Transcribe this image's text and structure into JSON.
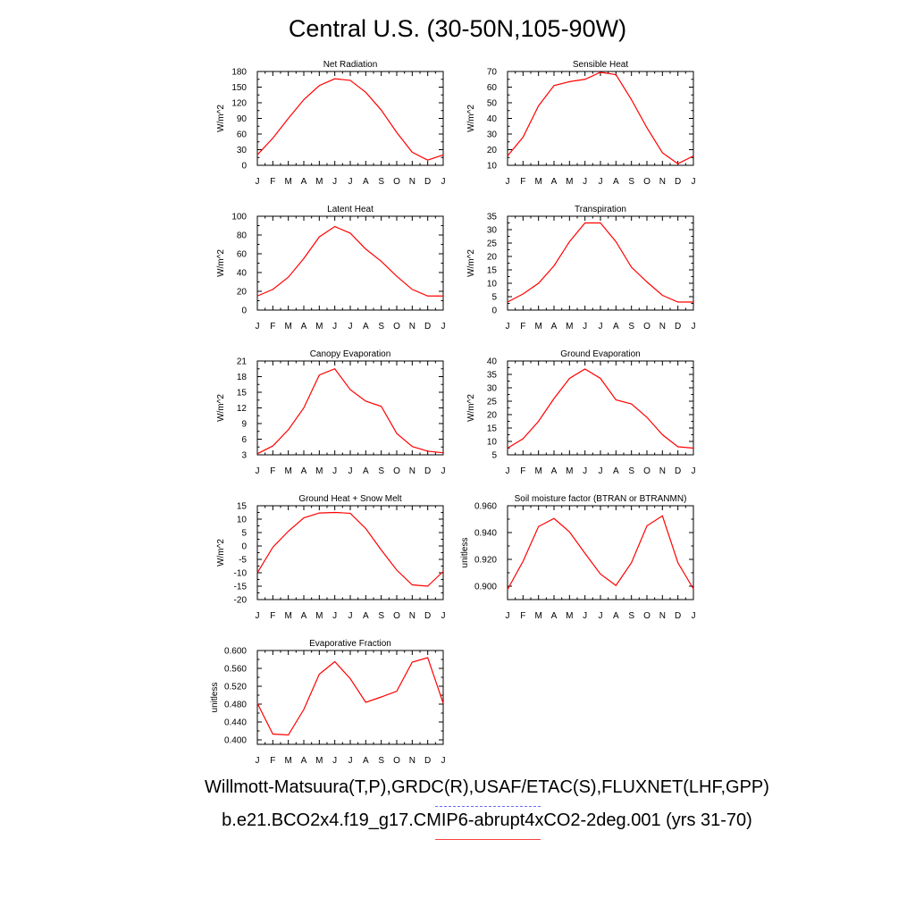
{
  "page": {
    "title": "Central U.S. (30-50N,105-90W)",
    "caption_obs": "Willmott-Matsuura(T,P),GRDC(R),USAF/ETAC(S),FLUXNET(LHF,GPP)",
    "caption_model": "b.e21.BCO2x4.f19_g17.CMIP6-abrupt4xCO2-2deg.001 (yrs 31-70)",
    "legend_obs_color": "#6a6af0",
    "legend_model_color": "#ff0000"
  },
  "chart_data": [
    {
      "type": "line",
      "title": "Net Radiation",
      "ylabel": "W/m^2",
      "x": [
        "J",
        "F",
        "M",
        "A",
        "M",
        "J",
        "J",
        "A",
        "S",
        "O",
        "N",
        "D",
        "J"
      ],
      "ylim": [
        0,
        180
      ],
      "yticks": [
        "0",
        "30",
        "60",
        "90",
        "120",
        "150",
        "180"
      ],
      "series": [
        {
          "color": "#ff0000",
          "values": [
            20,
            52,
            90,
            126,
            153,
            166,
            163,
            140,
            106,
            63,
            25,
            10,
            20
          ]
        }
      ]
    },
    {
      "type": "line",
      "title": "Sensible Heat",
      "ylabel": "W/m^2",
      "x": [
        "J",
        "F",
        "M",
        "A",
        "M",
        "J",
        "J",
        "A",
        "S",
        "O",
        "N",
        "D",
        "J"
      ],
      "ylim": [
        10,
        70
      ],
      "yticks": [
        "10",
        "20",
        "30",
        "40",
        "50",
        "60",
        "70"
      ],
      "series": [
        {
          "color": "#ff0000",
          "values": [
            16,
            28,
            48,
            61,
            63.5,
            65,
            69.5,
            68,
            52,
            34,
            18,
            11,
            16
          ]
        }
      ]
    },
    {
      "type": "line",
      "title": "Latent Heat",
      "ylabel": "W/m^2",
      "x": [
        "J",
        "F",
        "M",
        "A",
        "M",
        "J",
        "J",
        "A",
        "S",
        "O",
        "N",
        "D",
        "J"
      ],
      "ylim": [
        0,
        100
      ],
      "yticks": [
        "0",
        "20",
        "40",
        "60",
        "80",
        "100"
      ],
      "series": [
        {
          "color": "#ff0000",
          "values": [
            15,
            22,
            35,
            55,
            78,
            89,
            82,
            65,
            52,
            36,
            22,
            15,
            15
          ]
        }
      ]
    },
    {
      "type": "line",
      "title": "Transpiration",
      "ylabel": "W/m^2",
      "x": [
        "J",
        "F",
        "M",
        "A",
        "M",
        "J",
        "J",
        "A",
        "S",
        "O",
        "N",
        "D",
        "J"
      ],
      "ylim": [
        0,
        35
      ],
      "yticks": [
        "0",
        "5",
        "10",
        "15",
        "20",
        "25",
        "30",
        "35"
      ],
      "series": [
        {
          "color": "#ff0000",
          "values": [
            3,
            6,
            10,
            16.5,
            25.5,
            32.5,
            32.5,
            25.5,
            16,
            10.5,
            5.5,
            3,
            3
          ]
        }
      ]
    },
    {
      "type": "line",
      "title": "Canopy Evaporation",
      "ylabel": "W/m^2",
      "x": [
        "J",
        "F",
        "M",
        "A",
        "M",
        "J",
        "J",
        "A",
        "S",
        "O",
        "N",
        "D",
        "J"
      ],
      "ylim": [
        3,
        21
      ],
      "yticks": [
        "3",
        "6",
        "9",
        "12",
        "15",
        "18",
        "21"
      ],
      "series": [
        {
          "color": "#ff0000",
          "values": [
            3.2,
            4.7,
            7.8,
            12,
            18.3,
            19.5,
            15.5,
            13.3,
            12.3,
            7.1,
            4.6,
            3.7,
            3.4
          ]
        }
      ]
    },
    {
      "type": "line",
      "title": "Ground Evaporation",
      "ylabel": "W/m^2",
      "x": [
        "J",
        "F",
        "M",
        "A",
        "M",
        "J",
        "J",
        "A",
        "S",
        "O",
        "N",
        "D",
        "J"
      ],
      "ylim": [
        5,
        40
      ],
      "yticks": [
        "5",
        "10",
        "15",
        "20",
        "25",
        "30",
        "35",
        "40"
      ],
      "series": [
        {
          "color": "#ff0000",
          "values": [
            7.5,
            11,
            17.5,
            26,
            33.5,
            37,
            33.5,
            25.5,
            24,
            19,
            12.5,
            8,
            7.5
          ]
        }
      ]
    },
    {
      "type": "line",
      "title": "Ground Heat + Snow Melt",
      "ylabel": "W/m^2",
      "x": [
        "J",
        "F",
        "M",
        "A",
        "M",
        "J",
        "J",
        "A",
        "S",
        "O",
        "N",
        "D",
        "J"
      ],
      "ylim": [
        -20,
        15
      ],
      "yticks": [
        "-20",
        "-15",
        "-10",
        "-5",
        "0",
        "5",
        "10",
        "15"
      ],
      "series": [
        {
          "color": "#ff0000",
          "values": [
            -10,
            -0.5,
            5.5,
            10.5,
            12.3,
            12.5,
            12.2,
            6.5,
            -1.5,
            -9,
            -14.5,
            -15,
            -9.5
          ]
        }
      ]
    },
    {
      "type": "line",
      "title": "Soil moisture factor (BTRAN or BTRANMN)",
      "ylabel": "unitless",
      "x": [
        "J",
        "F",
        "M",
        "A",
        "M",
        "J",
        "J",
        "A",
        "S",
        "O",
        "N",
        "D",
        "J"
      ],
      "ylim": [
        0.89,
        0.96
      ],
      "yticks": [
        "0.900",
        "0.920",
        "0.940",
        "0.960"
      ],
      "ytick_values": [
        0.9,
        0.92,
        0.94,
        0.96
      ],
      "series": [
        {
          "color": "#ff0000",
          "values": [
            0.8975,
            0.9185,
            0.9445,
            0.9505,
            0.9405,
            0.9245,
            0.909,
            0.9005,
            0.9175,
            0.945,
            0.9525,
            0.9175,
            0.898
          ]
        }
      ]
    },
    {
      "type": "line",
      "title": "Evaporative Fraction",
      "ylabel": "unitless",
      "x": [
        "J",
        "F",
        "M",
        "A",
        "M",
        "J",
        "J",
        "A",
        "S",
        "O",
        "N",
        "D",
        "J"
      ],
      "ylim": [
        0.39,
        0.6
      ],
      "yticks": [
        "0.400",
        "0.440",
        "0.480",
        "0.520",
        "0.560",
        "0.600"
      ],
      "ytick_values": [
        0.4,
        0.44,
        0.48,
        0.52,
        0.56,
        0.6
      ],
      "series": [
        {
          "color": "#ff0000",
          "values": [
            0.482,
            0.413,
            0.411,
            0.468,
            0.547,
            0.575,
            0.537,
            0.484,
            0.496,
            0.509,
            0.574,
            0.584,
            0.482
          ]
        }
      ]
    }
  ]
}
